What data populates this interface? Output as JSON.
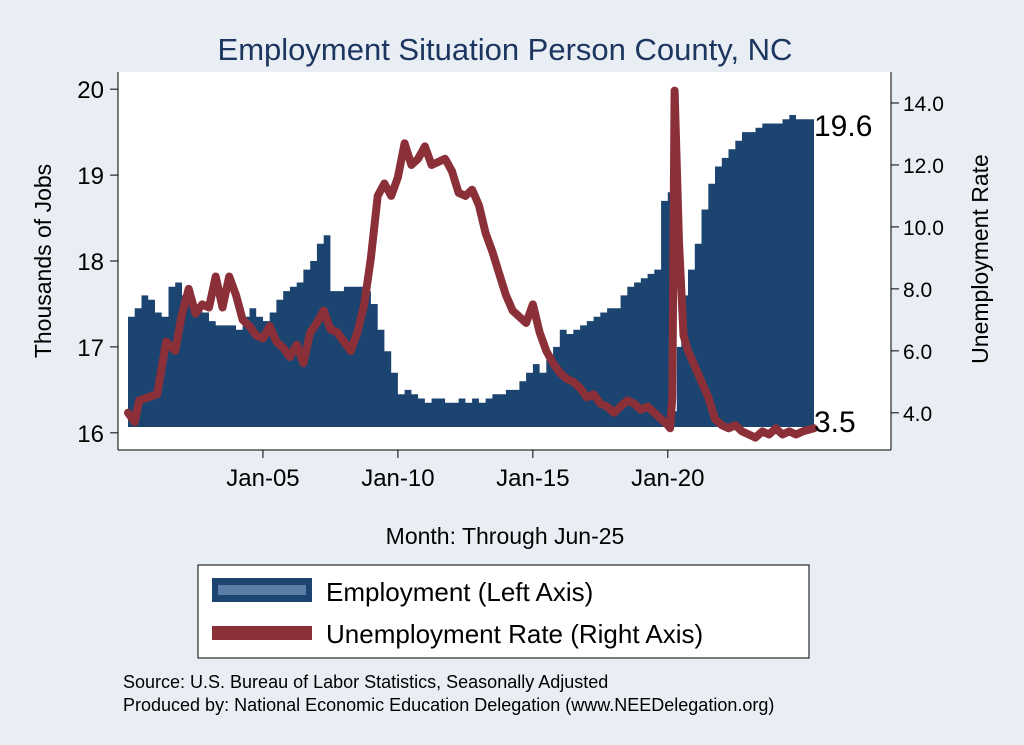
{
  "chart_data": {
    "type": "area+line",
    "title": "Employment Situation Person  County, NC",
    "xlabel": "Month: Through Jun-25",
    "ylabel_left": "Thousands of Jobs",
    "ylabel_right": "Unemployment Rate",
    "x_range": [
      "2000-01",
      "2025-06"
    ],
    "x_ticks": [
      {
        "date": "2005-01",
        "label": "Jan-05"
      },
      {
        "date": "2010-01",
        "label": "Jan-10"
      },
      {
        "date": "2015-01",
        "label": "Jan-15"
      },
      {
        "date": "2020-01",
        "label": "Jan-20"
      }
    ],
    "y_left": {
      "min": 15.8,
      "max": 20.2,
      "ticks": [
        "20",
        "19",
        "18",
        "17",
        "16"
      ]
    },
    "y_right": {
      "min": 2.8,
      "max": 15.0,
      "ticks": [
        "14.0",
        "12.0",
        "10.0",
        "8.0",
        "6.0",
        "4.0"
      ]
    },
    "series": [
      {
        "name": "Employment (Left Axis)",
        "axis": "left",
        "style": "area",
        "color": "#1c4470",
        "end_label": "19.6",
        "points": [
          [
            "2000-01",
            17.35
          ],
          [
            "2000-04",
            17.45
          ],
          [
            "2000-07",
            17.6
          ],
          [
            "2000-10",
            17.55
          ],
          [
            "2001-01",
            17.4
          ],
          [
            "2001-04",
            17.35
          ],
          [
            "2001-07",
            17.7
          ],
          [
            "2001-10",
            17.75
          ],
          [
            "2002-01",
            17.6
          ],
          [
            "2002-04",
            17.5
          ],
          [
            "2002-07",
            17.45
          ],
          [
            "2002-10",
            17.4
          ],
          [
            "2003-01",
            17.3
          ],
          [
            "2003-04",
            17.25
          ],
          [
            "2003-07",
            17.25
          ],
          [
            "2003-10",
            17.25
          ],
          [
            "2004-01",
            17.2
          ],
          [
            "2004-04",
            17.35
          ],
          [
            "2004-07",
            17.45
          ],
          [
            "2004-10",
            17.35
          ],
          [
            "2005-01",
            17.3
          ],
          [
            "2005-04",
            17.4
          ],
          [
            "2005-07",
            17.55
          ],
          [
            "2005-10",
            17.65
          ],
          [
            "2006-01",
            17.7
          ],
          [
            "2006-04",
            17.75
          ],
          [
            "2006-07",
            17.9
          ],
          [
            "2006-10",
            18.0
          ],
          [
            "2007-01",
            18.2
          ],
          [
            "2007-04",
            18.3
          ],
          [
            "2007-07",
            17.65
          ],
          [
            "2007-10",
            17.65
          ],
          [
            "2008-01",
            17.7
          ],
          [
            "2008-04",
            17.7
          ],
          [
            "2008-07",
            17.7
          ],
          [
            "2008-10",
            17.65
          ],
          [
            "2009-01",
            17.5
          ],
          [
            "2009-04",
            17.2
          ],
          [
            "2009-07",
            16.95
          ],
          [
            "2009-10",
            16.7
          ],
          [
            "2010-01",
            16.45
          ],
          [
            "2010-04",
            16.5
          ],
          [
            "2010-07",
            16.45
          ],
          [
            "2010-10",
            16.4
          ],
          [
            "2011-01",
            16.35
          ],
          [
            "2011-04",
            16.4
          ],
          [
            "2011-07",
            16.4
          ],
          [
            "2011-10",
            16.35
          ],
          [
            "2012-01",
            16.35
          ],
          [
            "2012-04",
            16.4
          ],
          [
            "2012-07",
            16.35
          ],
          [
            "2012-10",
            16.4
          ],
          [
            "2013-01",
            16.35
          ],
          [
            "2013-04",
            16.4
          ],
          [
            "2013-07",
            16.45
          ],
          [
            "2013-10",
            16.45
          ],
          [
            "2014-01",
            16.5
          ],
          [
            "2014-04",
            16.5
          ],
          [
            "2014-07",
            16.6
          ],
          [
            "2014-10",
            16.7
          ],
          [
            "2015-01",
            16.8
          ],
          [
            "2015-04",
            16.7
          ],
          [
            "2015-07",
            16.85
          ],
          [
            "2015-10",
            17.0
          ],
          [
            "2016-01",
            17.2
          ],
          [
            "2016-04",
            17.15
          ],
          [
            "2016-07",
            17.2
          ],
          [
            "2016-10",
            17.25
          ],
          [
            "2017-01",
            17.3
          ],
          [
            "2017-04",
            17.35
          ],
          [
            "2017-07",
            17.4
          ],
          [
            "2017-10",
            17.45
          ],
          [
            "2018-01",
            17.45
          ],
          [
            "2018-04",
            17.6
          ],
          [
            "2018-07",
            17.7
          ],
          [
            "2018-10",
            17.75
          ],
          [
            "2019-01",
            17.8
          ],
          [
            "2019-04",
            17.85
          ],
          [
            "2019-07",
            17.9
          ],
          [
            "2019-10",
            18.7
          ],
          [
            "2020-01",
            18.8
          ],
          [
            "2020-03",
            18.7
          ],
          [
            "2020-04",
            16.25
          ],
          [
            "2020-05",
            17.0
          ],
          [
            "2020-07",
            17.6
          ],
          [
            "2020-10",
            17.9
          ],
          [
            "2021-01",
            18.2
          ],
          [
            "2021-04",
            18.6
          ],
          [
            "2021-07",
            18.9
          ],
          [
            "2021-10",
            19.1
          ],
          [
            "2022-01",
            19.2
          ],
          [
            "2022-04",
            19.3
          ],
          [
            "2022-07",
            19.4
          ],
          [
            "2022-10",
            19.5
          ],
          [
            "2023-01",
            19.5
          ],
          [
            "2023-04",
            19.55
          ],
          [
            "2023-07",
            19.6
          ],
          [
            "2023-10",
            19.6
          ],
          [
            "2024-01",
            19.6
          ],
          [
            "2024-04",
            19.65
          ],
          [
            "2024-07",
            19.7
          ],
          [
            "2024-10",
            19.65
          ],
          [
            "2025-01",
            19.65
          ],
          [
            "2025-06",
            19.6
          ]
        ]
      },
      {
        "name": "Unemployment Rate (Right Axis)",
        "axis": "right",
        "style": "line",
        "color": "#8b3038",
        "end_label": "3.5",
        "points": [
          [
            "2000-01",
            4.0
          ],
          [
            "2000-04",
            3.7
          ],
          [
            "2000-06",
            4.4
          ],
          [
            "2000-10",
            4.5
          ],
          [
            "2001-02",
            4.6
          ],
          [
            "2001-06",
            6.3
          ],
          [
            "2001-10",
            6.0
          ],
          [
            "2002-01",
            7.2
          ],
          [
            "2002-04",
            8.0
          ],
          [
            "2002-07",
            7.2
          ],
          [
            "2002-10",
            7.5
          ],
          [
            "2003-01",
            7.4
          ],
          [
            "2003-04",
            8.4
          ],
          [
            "2003-07",
            7.4
          ],
          [
            "2003-10",
            8.4
          ],
          [
            "2004-01",
            7.8
          ],
          [
            "2004-04",
            7.0
          ],
          [
            "2004-07",
            6.8
          ],
          [
            "2004-10",
            6.5
          ],
          [
            "2005-01",
            6.4
          ],
          [
            "2005-04",
            6.8
          ],
          [
            "2005-07",
            6.3
          ],
          [
            "2005-10",
            6.1
          ],
          [
            "2006-01",
            5.8
          ],
          [
            "2006-04",
            6.2
          ],
          [
            "2006-07",
            5.6
          ],
          [
            "2006-10",
            6.6
          ],
          [
            "2007-01",
            6.9
          ],
          [
            "2007-04",
            7.3
          ],
          [
            "2007-07",
            6.7
          ],
          [
            "2007-10",
            6.6
          ],
          [
            "2008-01",
            6.3
          ],
          [
            "2008-04",
            6.0
          ],
          [
            "2008-07",
            6.6
          ],
          [
            "2008-10",
            7.5
          ],
          [
            "2009-01",
            9.0
          ],
          [
            "2009-04",
            11.0
          ],
          [
            "2009-07",
            11.4
          ],
          [
            "2009-10",
            11.0
          ],
          [
            "2010-01",
            11.6
          ],
          [
            "2010-04",
            12.7
          ],
          [
            "2010-07",
            12.0
          ],
          [
            "2010-10",
            12.2
          ],
          [
            "2011-01",
            12.6
          ],
          [
            "2011-04",
            12.0
          ],
          [
            "2011-07",
            12.1
          ],
          [
            "2011-10",
            12.2
          ],
          [
            "2012-01",
            11.8
          ],
          [
            "2012-04",
            11.1
          ],
          [
            "2012-07",
            11.0
          ],
          [
            "2012-10",
            11.2
          ],
          [
            "2013-01",
            10.7
          ],
          [
            "2013-04",
            9.8
          ],
          [
            "2013-07",
            9.2
          ],
          [
            "2013-10",
            8.5
          ],
          [
            "2014-01",
            7.8
          ],
          [
            "2014-04",
            7.3
          ],
          [
            "2014-07",
            7.1
          ],
          [
            "2014-10",
            6.9
          ],
          [
            "2015-01",
            7.5
          ],
          [
            "2015-04",
            6.6
          ],
          [
            "2015-07",
            6.0
          ],
          [
            "2015-10",
            5.6
          ],
          [
            "2016-01",
            5.3
          ],
          [
            "2016-04",
            5.1
          ],
          [
            "2016-07",
            5.0
          ],
          [
            "2016-10",
            4.8
          ],
          [
            "2017-01",
            4.5
          ],
          [
            "2017-04",
            4.6
          ],
          [
            "2017-07",
            4.3
          ],
          [
            "2017-10",
            4.2
          ],
          [
            "2018-01",
            4.0
          ],
          [
            "2018-04",
            4.2
          ],
          [
            "2018-07",
            4.4
          ],
          [
            "2018-10",
            4.3
          ],
          [
            "2019-01",
            4.1
          ],
          [
            "2019-04",
            4.2
          ],
          [
            "2019-07",
            4.0
          ],
          [
            "2019-10",
            3.8
          ],
          [
            "2020-01",
            3.6
          ],
          [
            "2020-02",
            3.5
          ],
          [
            "2020-03",
            4.5
          ],
          [
            "2020-04",
            14.4
          ],
          [
            "2020-06",
            9.5
          ],
          [
            "2020-08",
            6.5
          ],
          [
            "2020-10",
            6.0
          ],
          [
            "2021-01",
            5.5
          ],
          [
            "2021-04",
            5.0
          ],
          [
            "2021-07",
            4.5
          ],
          [
            "2021-10",
            3.8
          ],
          [
            "2022-01",
            3.6
          ],
          [
            "2022-04",
            3.5
          ],
          [
            "2022-07",
            3.6
          ],
          [
            "2022-10",
            3.4
          ],
          [
            "2023-01",
            3.3
          ],
          [
            "2023-04",
            3.2
          ],
          [
            "2023-07",
            3.4
          ],
          [
            "2023-10",
            3.3
          ],
          [
            "2024-01",
            3.5
          ],
          [
            "2024-04",
            3.3
          ],
          [
            "2024-07",
            3.4
          ],
          [
            "2024-10",
            3.3
          ],
          [
            "2025-01",
            3.4
          ],
          [
            "2025-06",
            3.5
          ]
        ]
      }
    ],
    "legend": {
      "placement": "bottom-center"
    },
    "grid": false
  },
  "notes": {
    "source": "Source: U.S. Bureau of Labor Statistics, Seasonally Adjusted",
    "produced": "Produced by: National Economic Education Delegation (www.NEEDelegation.org)"
  },
  "colors": {
    "background": "#e9eef4",
    "plot_background": "#ffffff",
    "area_fill": "#1c4470",
    "line": "#8b3038",
    "title": "#1c3660"
  }
}
